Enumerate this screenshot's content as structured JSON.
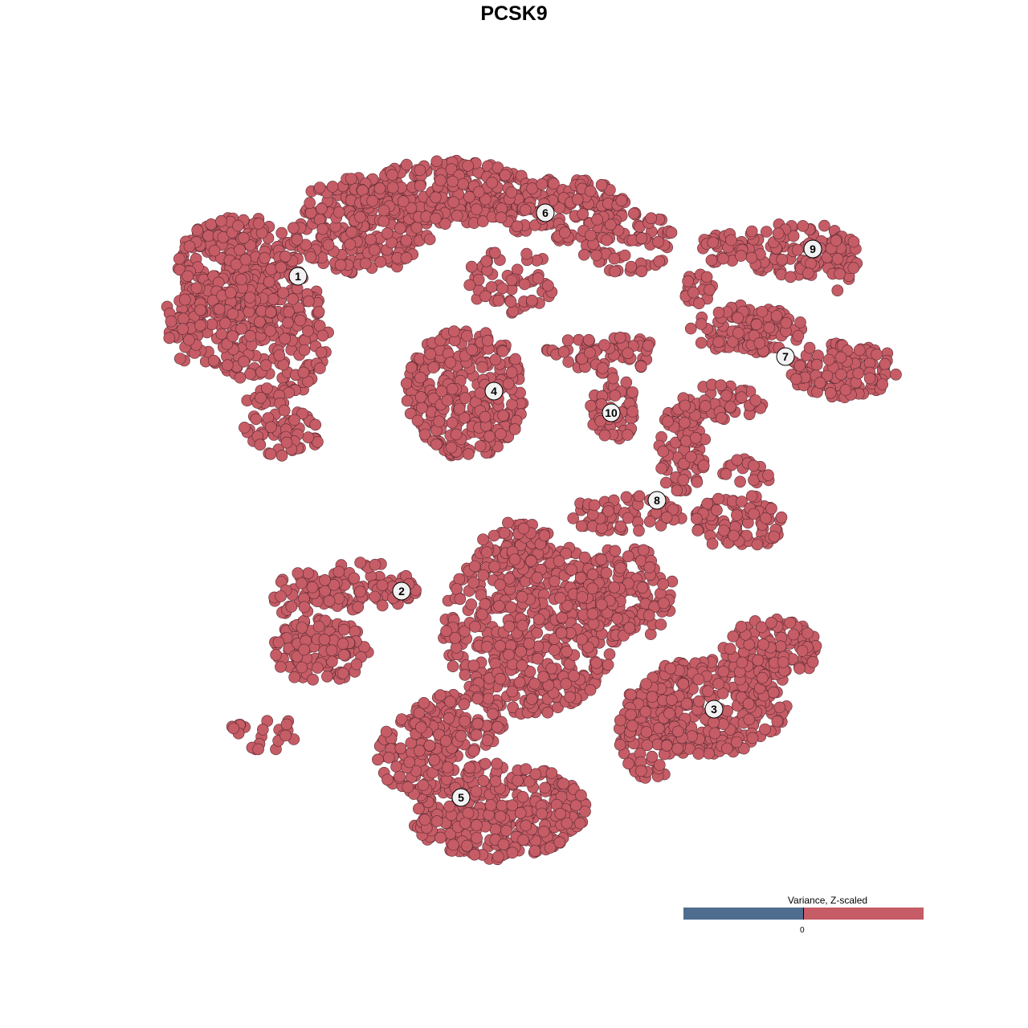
{
  "chart_data": {
    "type": "scatter",
    "title": "PCSK9",
    "xlabel": "",
    "ylabel": "",
    "grid": false,
    "axes_visible": false,
    "point_color": "#c55c66",
    "clusters": [
      "1",
      "2",
      "3",
      "4",
      "5",
      "6",
      "7",
      "8",
      "9",
      "10"
    ],
    "legend": {
      "title": "Variance, Z-scaled",
      "tick_labels": [
        "0"
      ],
      "low_color": "#4f6d8f",
      "high_color": "#c55c66",
      "placement": "bottom-right"
    }
  }
}
